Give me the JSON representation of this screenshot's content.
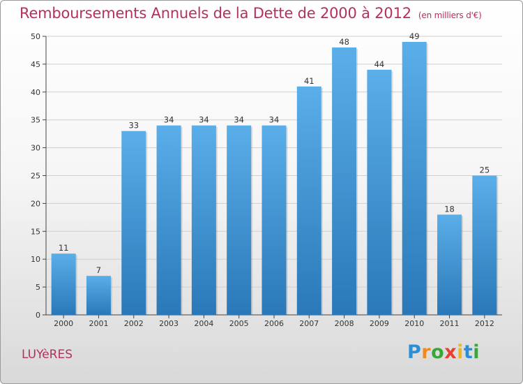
{
  "header": {
    "title": "Remboursements Annuels de la Dette de 2000 à 2012",
    "subtitle": "(en milliers d'€)"
  },
  "footer": {
    "town": "LUYèRES",
    "logo": "Proxiti"
  },
  "colors": {
    "title": "#b5305a",
    "bar_top": "#5aaee9",
    "bar_bottom": "#2a78b8",
    "grid": "#cfcfcf"
  },
  "chart_data": {
    "type": "bar",
    "title": "Remboursements Annuels de la Dette de 2000 à 2012",
    "subtitle": "(en milliers d'€)",
    "xlabel": "",
    "ylabel": "",
    "categories": [
      "2000",
      "2001",
      "2002",
      "2003",
      "2004",
      "2005",
      "2006",
      "2007",
      "2008",
      "2009",
      "2010",
      "2011",
      "2012"
    ],
    "values": [
      11,
      7,
      33,
      34,
      34,
      34,
      34,
      41,
      48,
      44,
      49,
      18,
      25
    ],
    "ylim": [
      0,
      50
    ],
    "yticks": [
      0,
      5,
      10,
      15,
      20,
      25,
      30,
      35,
      40,
      45,
      50
    ],
    "grid": true,
    "data_labels": true
  }
}
